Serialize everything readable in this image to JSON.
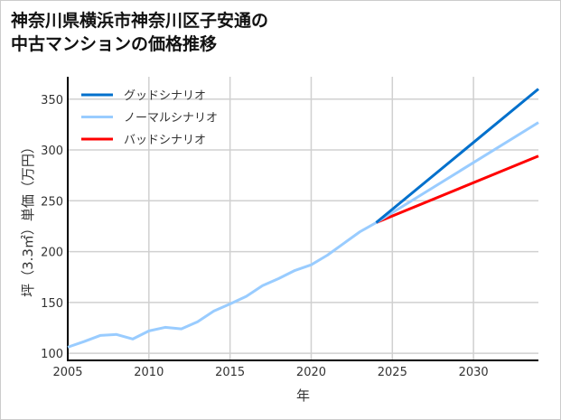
{
  "chart_data": {
    "type": "line",
    "title_lines": [
      "神奈川県横浜市神奈川区子安通の",
      "中古マンションの価格推移"
    ],
    "xlabel": "年",
    "ylabel": "坪（3.3㎡）単価（万円）",
    "xlim": [
      2005,
      2034
    ],
    "ylim": [
      93,
      372
    ],
    "xticks": [
      2005,
      2010,
      2015,
      2020,
      2025,
      2030
    ],
    "yticks": [
      100,
      150,
      200,
      250,
      300,
      350
    ],
    "grid": true,
    "legend_position": "top-left",
    "history": {
      "x": [
        2005,
        2006,
        2007,
        2008,
        2009,
        2010,
        2011,
        2012,
        2013,
        2014,
        2015,
        2016,
        2017,
        2018,
        2019,
        2020,
        2021,
        2022,
        2023,
        2024
      ],
      "y": [
        106,
        111.5,
        117.5,
        118.5,
        114,
        122,
        125.5,
        124,
        131,
        141.5,
        148.5,
        156,
        166.5,
        173.5,
        181.5,
        187,
        196.5,
        208,
        219.5,
        228.5
      ]
    },
    "series": [
      {
        "name": "グッドシナリオ",
        "color": "#0070cc",
        "x": [
          2024,
          2034
        ],
        "y": [
          228.5,
          360
        ]
      },
      {
        "name": "ノーマルシナリオ",
        "color": "#99ccff",
        "x": [
          2024,
          2034
        ],
        "y": [
          228.5,
          327
        ]
      },
      {
        "name": "バッドシナリオ",
        "color": "#ff0000",
        "x": [
          2024,
          2034
        ],
        "y": [
          228.5,
          294
        ]
      }
    ]
  }
}
